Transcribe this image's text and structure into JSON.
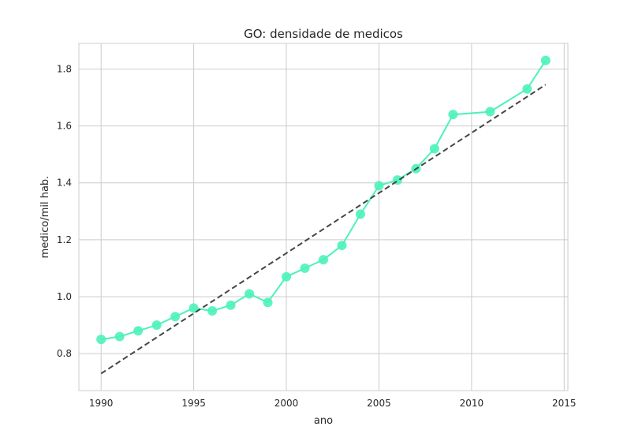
{
  "chart_data": {
    "type": "line",
    "title": "GO: densidade de medicos",
    "xlabel": "ano",
    "ylabel": "medico/mil hab.",
    "xlim": [
      1988.8,
      2015.2
    ],
    "ylim": [
      0.67,
      1.89
    ],
    "xticks": [
      1990,
      1995,
      2000,
      2005,
      2010,
      2015
    ],
    "yticks": [
      0.8,
      1.0,
      1.2,
      1.4,
      1.6,
      1.8
    ],
    "ytick_labels": [
      "0.8",
      "1.0",
      "1.2",
      "1.4",
      "1.6",
      "1.8"
    ],
    "grid": true,
    "series": [
      {
        "kind": "line+markers",
        "color": "#4cf2b9",
        "x": [
          1990,
          1991,
          1992,
          1993,
          1994,
          1995,
          1996,
          1997,
          1998,
          1999,
          2000,
          2001,
          2002,
          2003,
          2004,
          2005,
          2006,
          2007,
          2008,
          2009,
          2011,
          2013,
          2014
        ],
        "values": [
          0.85,
          0.86,
          0.88,
          0.9,
          0.93,
          0.96,
          0.95,
          0.97,
          1.01,
          0.98,
          1.07,
          1.1,
          1.13,
          1.18,
          1.29,
          1.39,
          1.41,
          1.45,
          1.52,
          1.64,
          1.65,
          1.73,
          1.83
        ]
      },
      {
        "kind": "trend",
        "color": "#454545",
        "dashed": true,
        "x": [
          1990,
          2014
        ],
        "values": [
          0.73,
          1.745
        ]
      }
    ]
  }
}
